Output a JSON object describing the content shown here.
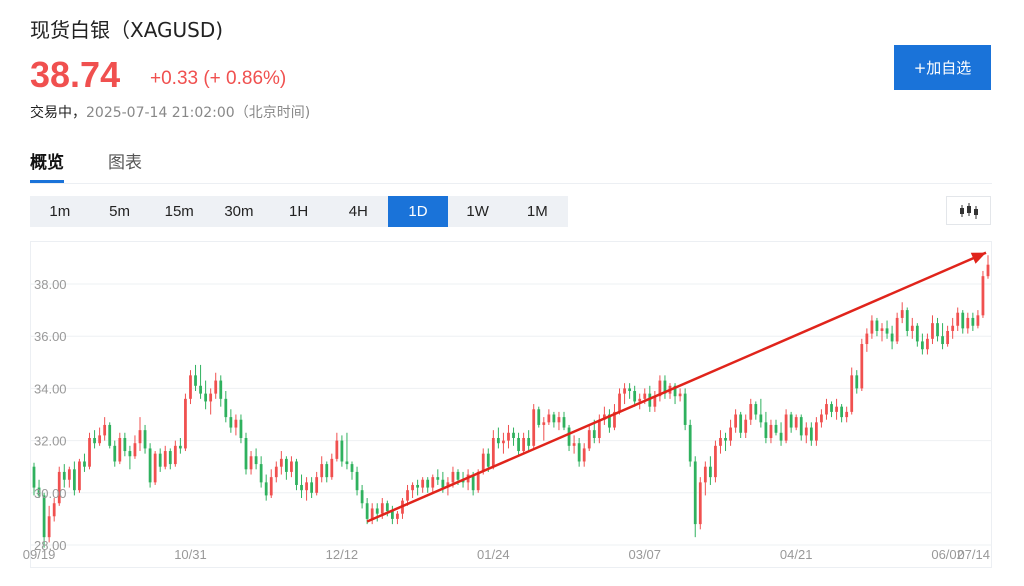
{
  "header": {
    "title": "现货白银（XAGUSD)",
    "price": "38.74",
    "change": "+0.33 (+ 0.86%)",
    "status_label": "交易中，",
    "timestamp": "2025-07-14 21:02:00（北京时间)",
    "add_watchlist": "+加自选"
  },
  "tabs": [
    {
      "label": "概览",
      "active": true
    },
    {
      "label": "图表",
      "active": false
    }
  ],
  "periods": [
    {
      "label": "1m",
      "active": false
    },
    {
      "label": "5m",
      "active": false
    },
    {
      "label": "15m",
      "active": false
    },
    {
      "label": "30m",
      "active": false
    },
    {
      "label": "1H",
      "active": false
    },
    {
      "label": "4H",
      "active": false
    },
    {
      "label": "1D",
      "active": true
    },
    {
      "label": "1W",
      "active": false
    },
    {
      "label": "1M",
      "active": false
    }
  ],
  "chart_type_icon": "candlestick-chart-icon",
  "colors": {
    "up": "#f0504f",
    "down": "#2fb15e",
    "accent": "#1a73d9",
    "trend_arrow": "#e0241b"
  },
  "chart_data": {
    "type": "candlestick",
    "ylim": [
      28,
      39.5
    ],
    "yticks": [
      "28.00",
      "30.00",
      "32.00",
      "34.00",
      "36.00",
      "38.00"
    ],
    "xticks": [
      "09/19",
      "10/31",
      "12/12",
      "01/24",
      "03/07",
      "04/21",
      "06/02",
      "07/14"
    ],
    "series": [
      {
        "values": [
          [
            31.0,
            31.15,
            29.9,
            30.2
          ],
          [
            30.2,
            30.5,
            29.8,
            29.9
          ],
          [
            29.9,
            30.0,
            27.9,
            28.3
          ],
          [
            28.3,
            29.5,
            28.1,
            29.1
          ],
          [
            29.1,
            29.8,
            28.9,
            29.6
          ],
          [
            29.6,
            31.0,
            29.5,
            30.8
          ],
          [
            30.8,
            31.1,
            30.2,
            30.5
          ],
          [
            30.5,
            31.0,
            30.2,
            30.9
          ],
          [
            30.9,
            31.2,
            29.9,
            30.1
          ],
          [
            30.1,
            31.3,
            30.0,
            31.2
          ],
          [
            31.2,
            31.5,
            30.8,
            31.0
          ],
          [
            31.0,
            32.3,
            30.9,
            32.1
          ],
          [
            32.1,
            32.4,
            31.7,
            31.9
          ],
          [
            31.9,
            32.5,
            31.8,
            32.2
          ],
          [
            32.2,
            32.9,
            32.0,
            32.6
          ],
          [
            32.6,
            32.7,
            31.7,
            31.8
          ],
          [
            31.8,
            32.0,
            31.0,
            31.2
          ],
          [
            31.2,
            32.3,
            31.1,
            32.1
          ],
          [
            32.1,
            32.3,
            31.4,
            31.6
          ],
          [
            31.6,
            31.8,
            30.9,
            31.4
          ],
          [
            31.4,
            32.2,
            31.3,
            31.9
          ],
          [
            31.9,
            32.9,
            31.6,
            32.4
          ],
          [
            32.4,
            32.6,
            31.5,
            31.7
          ],
          [
            31.7,
            31.9,
            30.2,
            30.4
          ],
          [
            30.4,
            31.6,
            30.3,
            31.5
          ],
          [
            31.5,
            31.7,
            30.8,
            31.0
          ],
          [
            31.0,
            31.8,
            30.9,
            31.6
          ],
          [
            31.6,
            31.7,
            30.9,
            31.1
          ],
          [
            31.1,
            32.0,
            31.0,
            31.8
          ],
          [
            31.8,
            32.1,
            31.5,
            31.7
          ],
          [
            31.7,
            33.8,
            31.6,
            33.6
          ],
          [
            33.6,
            34.7,
            33.4,
            34.5
          ],
          [
            34.5,
            34.9,
            33.9,
            34.1
          ],
          [
            34.1,
            34.9,
            33.6,
            33.8
          ],
          [
            33.8,
            34.3,
            33.2,
            33.5
          ],
          [
            33.5,
            34.0,
            33.0,
            33.8
          ],
          [
            33.8,
            34.6,
            33.6,
            34.3
          ],
          [
            34.3,
            34.5,
            33.3,
            33.6
          ],
          [
            33.6,
            33.9,
            32.7,
            32.9
          ],
          [
            32.9,
            33.2,
            32.3,
            32.5
          ],
          [
            32.5,
            33.0,
            32.2,
            32.8
          ],
          [
            32.8,
            33.0,
            31.9,
            32.1
          ],
          [
            32.1,
            32.3,
            30.7,
            30.9
          ],
          [
            30.9,
            31.6,
            30.7,
            31.4
          ],
          [
            31.4,
            31.7,
            30.9,
            31.1
          ],
          [
            31.1,
            31.4,
            30.2,
            30.4
          ],
          [
            30.4,
            30.7,
            29.7,
            29.9
          ],
          [
            29.9,
            30.9,
            29.8,
            30.6
          ],
          [
            30.6,
            31.2,
            30.4,
            31.0
          ],
          [
            31.0,
            31.6,
            30.7,
            31.3
          ],
          [
            31.3,
            31.4,
            30.5,
            30.8
          ],
          [
            30.8,
            31.4,
            30.6,
            31.2
          ],
          [
            31.2,
            31.3,
            30.1,
            30.3
          ],
          [
            30.3,
            30.7,
            29.8,
            30.1
          ],
          [
            30.1,
            30.6,
            29.7,
            30.4
          ],
          [
            30.4,
            30.6,
            29.8,
            30.0
          ],
          [
            30.0,
            30.8,
            29.9,
            30.6
          ],
          [
            30.6,
            31.4,
            30.4,
            31.1
          ],
          [
            31.1,
            31.2,
            30.4,
            30.6
          ],
          [
            30.6,
            31.5,
            30.5,
            31.3
          ],
          [
            31.3,
            32.3,
            31.2,
            32.0
          ],
          [
            32.0,
            32.2,
            31.0,
            31.2
          ],
          [
            31.2,
            32.3,
            30.9,
            31.1
          ],
          [
            31.1,
            31.2,
            30.5,
            30.8
          ],
          [
            30.8,
            31.0,
            29.9,
            30.1
          ],
          [
            30.1,
            30.3,
            29.4,
            29.6
          ],
          [
            29.6,
            29.8,
            28.8,
            29.0
          ],
          [
            29.0,
            29.6,
            28.8,
            29.4
          ],
          [
            29.4,
            29.6,
            28.9,
            29.2
          ],
          [
            29.2,
            29.8,
            29.0,
            29.6
          ],
          [
            29.6,
            29.7,
            29.1,
            29.3
          ],
          [
            29.3,
            29.5,
            28.8,
            29.0
          ],
          [
            29.0,
            29.3,
            28.8,
            29.2
          ],
          [
            29.2,
            29.8,
            29.0,
            29.7
          ],
          [
            29.7,
            30.3,
            29.5,
            30.1
          ],
          [
            30.1,
            30.4,
            29.8,
            30.3
          ],
          [
            30.3,
            30.5,
            29.9,
            30.2
          ],
          [
            30.2,
            30.6,
            30.0,
            30.5
          ],
          [
            30.5,
            30.6,
            30.0,
            30.2
          ],
          [
            30.2,
            30.7,
            30.0,
            30.6
          ],
          [
            30.6,
            30.9,
            30.3,
            30.5
          ],
          [
            30.5,
            30.8,
            30.0,
            30.2
          ],
          [
            30.2,
            30.6,
            29.9,
            30.4
          ],
          [
            30.4,
            31.0,
            30.2,
            30.8
          ],
          [
            30.8,
            30.9,
            30.3,
            30.5
          ],
          [
            30.5,
            30.8,
            30.2,
            30.4
          ],
          [
            30.4,
            30.9,
            30.1,
            30.7
          ],
          [
            30.7,
            30.8,
            29.9,
            30.1
          ],
          [
            30.1,
            30.9,
            30.0,
            30.8
          ],
          [
            30.8,
            31.7,
            30.7,
            31.5
          ],
          [
            31.5,
            31.7,
            30.8,
            31.0
          ],
          [
            31.0,
            32.4,
            30.9,
            32.1
          ],
          [
            32.1,
            32.5,
            31.7,
            31.9
          ],
          [
            31.9,
            32.3,
            31.5,
            32.0
          ],
          [
            32.0,
            32.6,
            31.7,
            32.3
          ],
          [
            32.3,
            32.5,
            31.8,
            32.1
          ],
          [
            32.1,
            32.3,
            31.4,
            31.6
          ],
          [
            31.6,
            32.3,
            31.5,
            32.1
          ],
          [
            32.1,
            32.4,
            31.6,
            31.8
          ],
          [
            31.8,
            33.4,
            31.7,
            33.2
          ],
          [
            33.2,
            33.3,
            32.5,
            32.6
          ],
          [
            32.6,
            32.9,
            32.0,
            32.7
          ],
          [
            32.7,
            33.2,
            32.6,
            33.0
          ],
          [
            33.0,
            33.1,
            32.5,
            32.7
          ],
          [
            32.7,
            33.1,
            32.4,
            32.9
          ],
          [
            32.9,
            33.1,
            32.4,
            32.5
          ],
          [
            32.5,
            32.6,
            31.6,
            31.8
          ],
          [
            31.8,
            32.2,
            31.5,
            31.9
          ],
          [
            31.9,
            32.1,
            31.0,
            31.2
          ],
          [
            31.2,
            31.9,
            31.0,
            31.7
          ],
          [
            31.7,
            32.6,
            31.6,
            32.4
          ],
          [
            32.4,
            32.8,
            31.9,
            32.1
          ],
          [
            32.1,
            33.0,
            31.9,
            32.8
          ],
          [
            32.8,
            33.3,
            32.6,
            33.0
          ],
          [
            33.0,
            33.2,
            32.3,
            32.5
          ],
          [
            32.5,
            33.4,
            32.4,
            33.1
          ],
          [
            33.1,
            34.0,
            33.0,
            33.8
          ],
          [
            33.8,
            34.2,
            33.4,
            34.0
          ],
          [
            34.0,
            34.2,
            33.6,
            33.9
          ],
          [
            33.9,
            34.1,
            33.3,
            33.5
          ],
          [
            33.5,
            33.8,
            33.2,
            33.6
          ],
          [
            33.6,
            34.0,
            33.4,
            33.8
          ],
          [
            33.8,
            34.1,
            33.1,
            33.3
          ],
          [
            33.3,
            33.9,
            33.1,
            33.7
          ],
          [
            33.7,
            34.5,
            33.5,
            34.3
          ],
          [
            34.3,
            34.5,
            33.6,
            33.8
          ],
          [
            33.8,
            34.2,
            33.6,
            34.1
          ],
          [
            34.1,
            34.2,
            33.4,
            33.7
          ],
          [
            33.7,
            34.0,
            33.5,
            33.8
          ],
          [
            33.8,
            34.0,
            32.4,
            32.6
          ],
          [
            32.6,
            32.8,
            31.0,
            31.2
          ],
          [
            31.2,
            31.4,
            28.3,
            28.8
          ],
          [
            28.8,
            30.6,
            28.6,
            30.4
          ],
          [
            30.4,
            31.2,
            29.9,
            31.0
          ],
          [
            31.0,
            31.4,
            30.3,
            30.6
          ],
          [
            30.6,
            32.0,
            30.4,
            31.8
          ],
          [
            31.8,
            32.4,
            31.5,
            32.1
          ],
          [
            32.1,
            32.3,
            31.6,
            32.0
          ],
          [
            32.0,
            32.8,
            31.8,
            32.5
          ],
          [
            32.5,
            33.2,
            32.3,
            33.0
          ],
          [
            33.0,
            33.1,
            32.1,
            32.3
          ],
          [
            32.3,
            33.0,
            32.1,
            32.8
          ],
          [
            32.8,
            33.6,
            32.6,
            33.4
          ],
          [
            33.4,
            33.5,
            32.8,
            33.0
          ],
          [
            33.0,
            33.6,
            32.5,
            32.7
          ],
          [
            32.7,
            33.1,
            31.9,
            32.1
          ],
          [
            32.1,
            32.8,
            31.9,
            32.6
          ],
          [
            32.6,
            32.8,
            32.2,
            32.3
          ],
          [
            32.3,
            32.7,
            31.8,
            32.0
          ],
          [
            32.0,
            33.2,
            31.9,
            33.0
          ],
          [
            33.0,
            33.1,
            32.3,
            32.5
          ],
          [
            32.5,
            33.0,
            32.4,
            32.9
          ],
          [
            32.9,
            33.0,
            32.0,
            32.2
          ],
          [
            32.2,
            32.7,
            31.9,
            32.5
          ],
          [
            32.5,
            32.7,
            31.8,
            32.0
          ],
          [
            32.0,
            32.9,
            31.8,
            32.7
          ],
          [
            32.7,
            33.2,
            32.5,
            33.0
          ],
          [
            33.0,
            33.6,
            32.8,
            33.4
          ],
          [
            33.4,
            33.5,
            32.9,
            33.1
          ],
          [
            33.1,
            33.6,
            32.8,
            33.3
          ],
          [
            33.3,
            33.4,
            32.7,
            32.9
          ],
          [
            32.9,
            33.3,
            32.7,
            33.1
          ],
          [
            33.1,
            34.8,
            33.0,
            34.5
          ],
          [
            34.5,
            34.7,
            33.8,
            34.0
          ],
          [
            34.0,
            35.9,
            33.9,
            35.7
          ],
          [
            35.7,
            36.3,
            35.4,
            36.1
          ],
          [
            36.1,
            36.8,
            35.9,
            36.6
          ],
          [
            36.6,
            36.7,
            36.0,
            36.2
          ],
          [
            36.2,
            36.5,
            35.8,
            36.3
          ],
          [
            36.3,
            36.6,
            35.9,
            36.1
          ],
          [
            36.1,
            36.4,
            35.5,
            35.8
          ],
          [
            35.8,
            36.9,
            35.7,
            36.7
          ],
          [
            36.7,
            37.3,
            36.5,
            37.0
          ],
          [
            37.0,
            37.1,
            36.0,
            36.2
          ],
          [
            36.2,
            36.7,
            35.9,
            36.4
          ],
          [
            36.4,
            36.5,
            35.6,
            35.8
          ],
          [
            35.8,
            36.1,
            35.3,
            35.5
          ],
          [
            35.5,
            36.1,
            35.3,
            35.9
          ],
          [
            35.9,
            36.8,
            35.7,
            36.5
          ],
          [
            36.5,
            36.7,
            35.8,
            36.0
          ],
          [
            36.0,
            36.5,
            35.5,
            35.7
          ],
          [
            35.7,
            36.4,
            35.6,
            36.2
          ],
          [
            36.2,
            36.7,
            35.9,
            36.4
          ],
          [
            36.4,
            37.1,
            36.2,
            36.9
          ],
          [
            36.9,
            37.0,
            36.1,
            36.3
          ],
          [
            36.3,
            36.9,
            36.1,
            36.7
          ],
          [
            36.7,
            36.9,
            36.2,
            36.4
          ],
          [
            36.4,
            37.0,
            36.3,
            36.8
          ],
          [
            36.8,
            38.5,
            36.7,
            38.3
          ],
          [
            38.3,
            39.1,
            38.2,
            38.74
          ]
        ]
      }
    ]
  }
}
